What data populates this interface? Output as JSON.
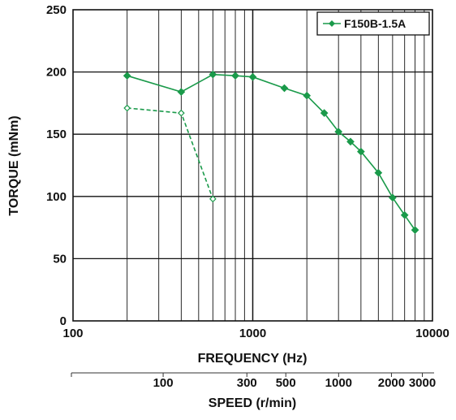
{
  "chart_data": {
    "type": "line",
    "title": "",
    "xlabel": "FREQUENCY (Hz)",
    "ylabel": "TORQUE (mNm)",
    "xscale": "log",
    "xlim": [
      100,
      10000
    ],
    "ylim": [
      0,
      250
    ],
    "xticks": [
      100,
      1000,
      10000
    ],
    "xtick_labels": [
      "100",
      "1000",
      "10000"
    ],
    "yticks": [
      0,
      50,
      100,
      150,
      200,
      250
    ],
    "ytick_labels": [
      "0",
      "50",
      "100",
      "150",
      "200",
      "250"
    ],
    "grid": true,
    "legend_position": "top-right",
    "secondary_axis": {
      "label": "SPEED (r/min)",
      "scale": "log",
      "ticks": [
        {
          "value": 100,
          "label": "100"
        },
        {
          "value": 300,
          "label": "300"
        },
        {
          "value": 500,
          "label": "500"
        },
        {
          "value": 1000,
          "label": "1000"
        },
        {
          "value": 2000,
          "label": "2000"
        },
        {
          "value": 3000,
          "label": "3000"
        }
      ]
    },
    "series": [
      {
        "name": "F150B-1.5A",
        "style": "solid",
        "marker": "filled-diamond",
        "color": "#1a9a4a",
        "x": [
          200,
          400,
          600,
          800,
          1000,
          1500,
          2000,
          2500,
          3000,
          3500,
          4000,
          5000,
          6000,
          7000,
          8000
        ],
        "y": [
          197,
          184,
          198,
          197,
          196,
          187,
          181,
          167,
          152,
          144,
          136,
          119,
          99,
          85,
          73
        ]
      },
      {
        "name": "",
        "style": "dashed",
        "marker": "open-diamond",
        "color": "#1a9a4a",
        "x": [
          200,
          400,
          600
        ],
        "y": [
          171,
          167,
          98
        ]
      }
    ]
  }
}
